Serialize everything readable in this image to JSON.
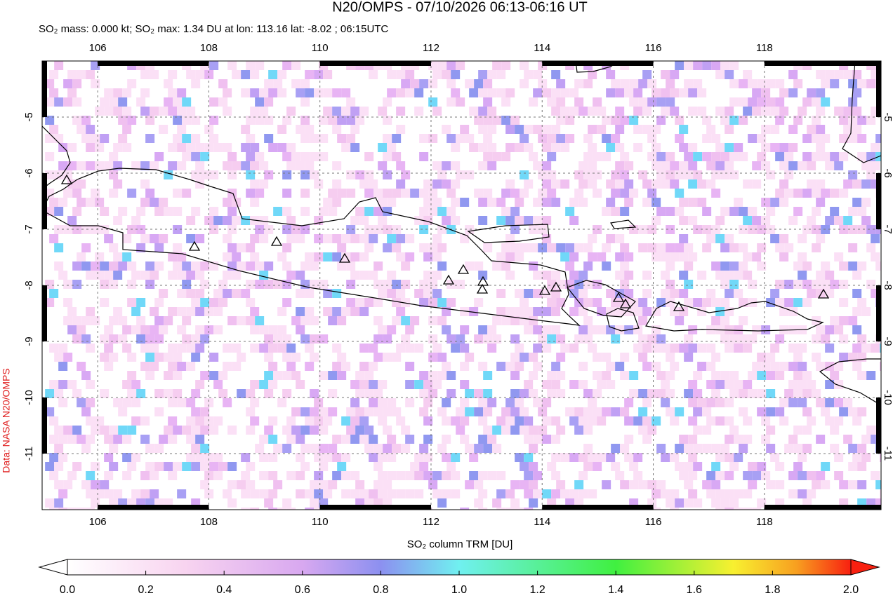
{
  "chart_data": {
    "type": "map",
    "title": "N20/OMPS - 07/10/2026 06:13-06:16 UT",
    "subtitle": "SO₂ mass: 0.000 kt; SO₂ max: 1.34 DU at lon: 113.16 lat: -8.02 ; 06:15UTC",
    "credit": "Data: NASA N20/OMPS",
    "xlim": [
      105,
      120.1
    ],
    "ylim": [
      -12,
      -4
    ],
    "xticks": [
      106,
      108,
      110,
      112,
      114,
      116,
      118
    ],
    "yticks": [
      -5,
      -6,
      -7,
      -8,
      -9,
      -10,
      -11
    ],
    "grid": true,
    "colorbar": {
      "label": "SO₂ column TRM [DU]",
      "lim": [
        0,
        2
      ],
      "ticks": [
        {
          "value": 0,
          "label": "0.0"
        },
        {
          "value": 0.2,
          "label": "0.2"
        },
        {
          "value": 0.4,
          "label": "0.4"
        },
        {
          "value": 0.6,
          "label": "0.6"
        },
        {
          "value": 0.8,
          "label": "0.8"
        },
        {
          "value": 1,
          "label": "1.0"
        },
        {
          "value": 1.2,
          "label": "1.2"
        },
        {
          "value": 1.4,
          "label": "1.4"
        },
        {
          "value": 1.6,
          "label": "1.6"
        },
        {
          "value": 1.8,
          "label": "1.8"
        },
        {
          "value": 2,
          "label": "2.0"
        }
      ]
    }
  }
}
